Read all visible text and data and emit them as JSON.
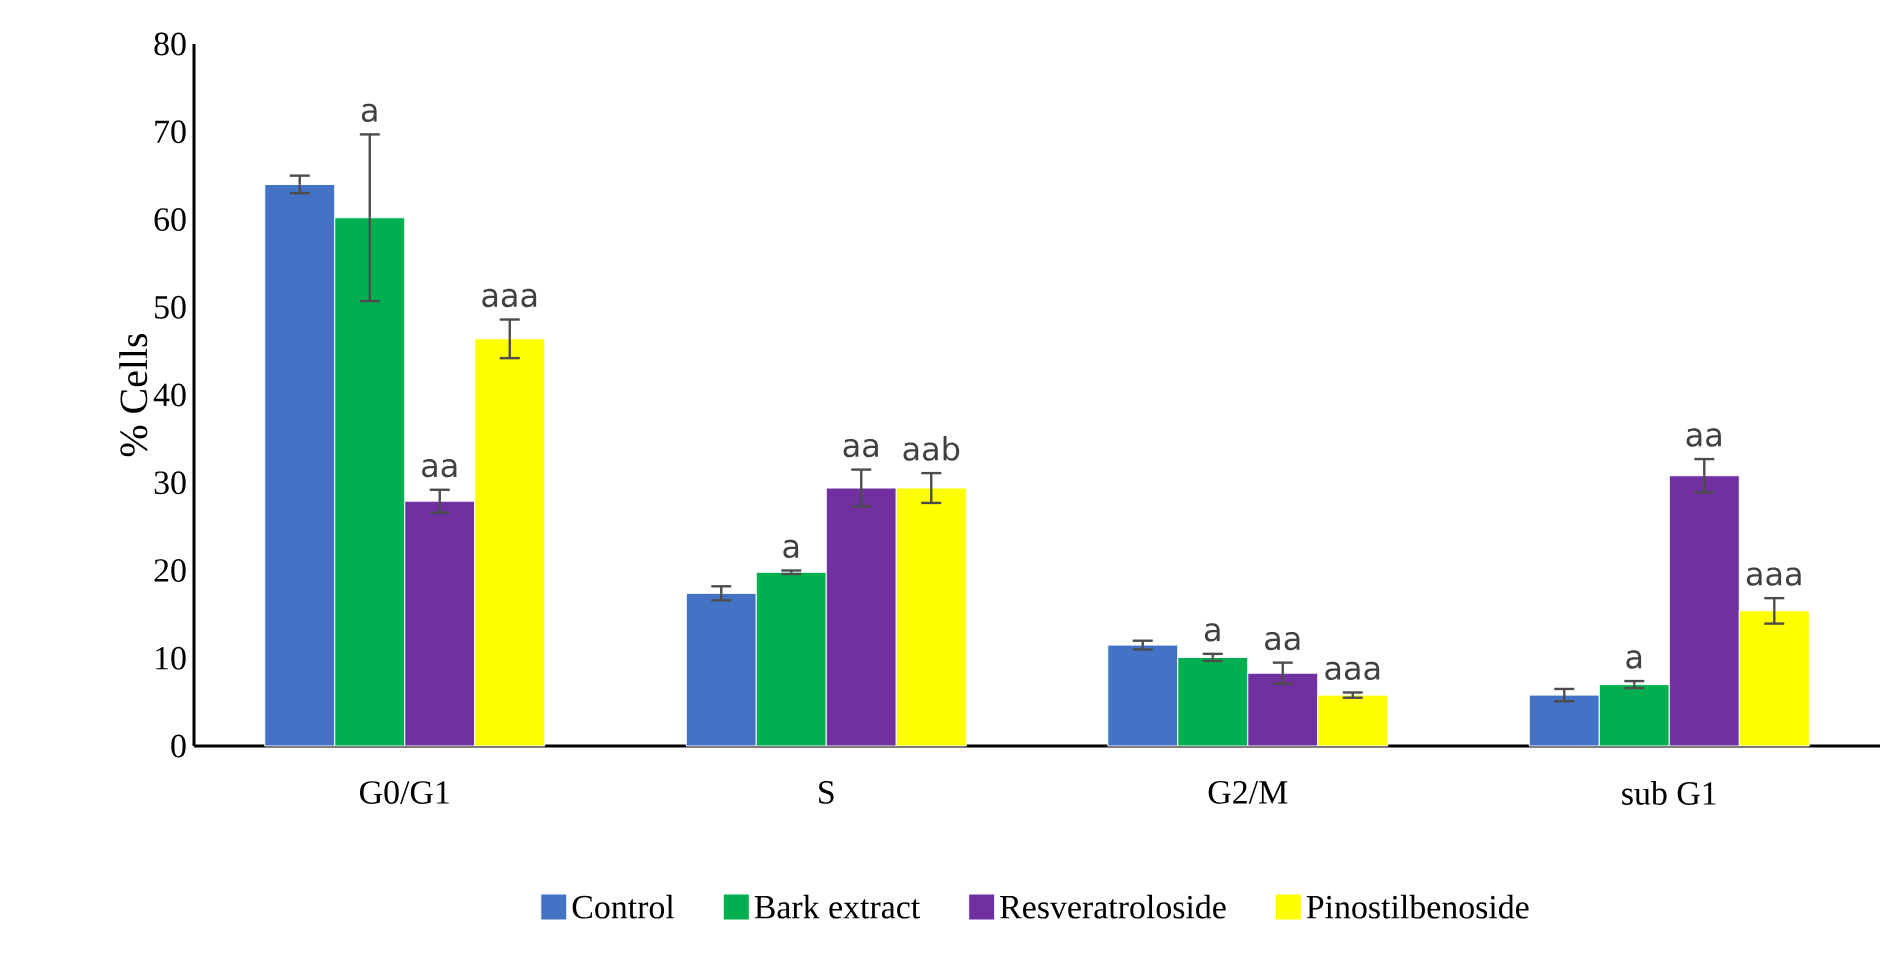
{
  "chart_data": {
    "type": "bar",
    "ylabel": "% Cells",
    "categories": [
      "G0/G1",
      "S",
      "G2/M",
      "sub G1"
    ],
    "series": [
      {
        "name": "Control",
        "color": "#4472c4",
        "values": [
          64.0,
          17.4,
          11.5,
          5.8
        ],
        "errors": [
          1.0,
          0.8,
          0.5,
          0.7
        ]
      },
      {
        "name": "Bark extract",
        "color": "#00b050",
        "values": [
          60.2,
          19.8,
          10.1,
          7.0
        ],
        "errors": [
          9.5,
          0.2,
          0.4,
          0.4
        ]
      },
      {
        "name": "Resveratroloside",
        "color": "#7030a0",
        "values": [
          27.9,
          29.4,
          8.3,
          30.8
        ],
        "errors": [
          1.3,
          2.1,
          1.2,
          1.9
        ]
      },
      {
        "name": "Pinostilbenoside",
        "color": "#ffff00",
        "values": [
          46.4,
          29.4,
          5.8,
          15.4
        ],
        "errors": [
          2.2,
          1.7,
          0.3,
          1.45
        ]
      }
    ],
    "ylim": [
      0,
      80
    ],
    "yticks": [
      0,
      10,
      20,
      30,
      40,
      50,
      60,
      70,
      80
    ],
    "legend": "bottom",
    "annotations": [
      "a",
      "aa",
      "aaa",
      "a",
      "aa",
      "aab",
      "a",
      "aa",
      "aaa",
      "a",
      "aa",
      "aaa"
    ]
  }
}
